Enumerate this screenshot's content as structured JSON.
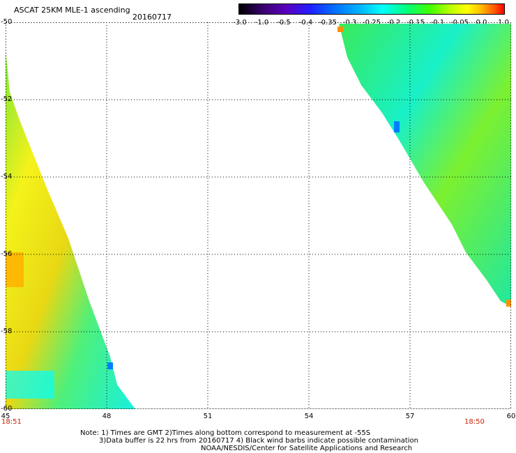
{
  "header": {
    "title": "ASCAT 25KM MLE-1 ascending",
    "date": "20160717"
  },
  "colorbar": {
    "ticks": [
      "-3.0",
      "-1.0",
      "-0.5",
      "-0.4",
      "-0.35",
      "-0.3",
      "-0.25",
      "-0.2",
      "-0.15",
      "-0.1",
      "-0.05",
      "0.0",
      "1.0"
    ]
  },
  "map": {
    "y_ticks": [
      "-50",
      "-52",
      "-54",
      "-56",
      "-58",
      "-60"
    ],
    "x_ticks": [
      "45",
      "48",
      "51",
      "54",
      "57",
      "60"
    ],
    "time_left": "18:51",
    "time_right": "18:50",
    "grid": true
  },
  "notes": [
    "Note: 1) Times are GMT 2)Times along bottom correspond to measurement at -55S",
    "3)Data buffer is 22 hrs from 20160717 4) Black wind barbs indicate possible contamination",
    "NOAA/NESDIS/Center for Satellite Applications and Research"
  ]
}
